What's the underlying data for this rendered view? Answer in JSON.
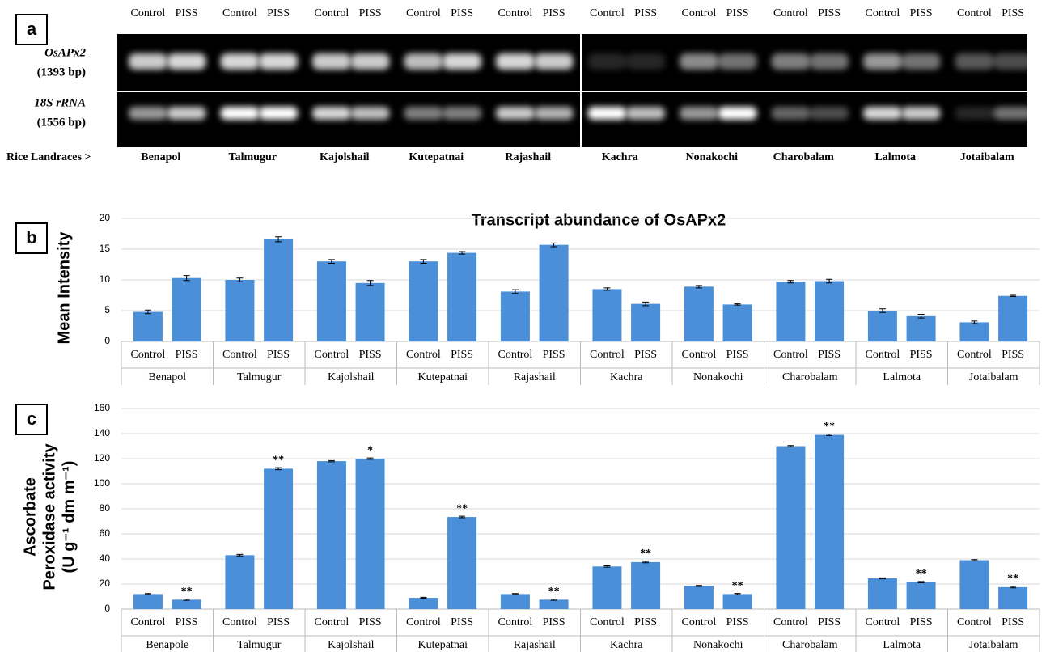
{
  "panel_a": {
    "label": "a",
    "lane_headers": [
      "Control",
      "PISS",
      "Control",
      "PISS",
      "Control",
      "PISS",
      "Control",
      "PISS",
      "Control",
      "PISS",
      "Control",
      "PISS",
      "Control",
      "PISS",
      "Control",
      "PISS",
      "Control",
      "PISS",
      "Control",
      "PISS"
    ],
    "genes": [
      {
        "name": "OsAPx2",
        "size": "(1393 bp)"
      },
      {
        "name": "18S rRNA",
        "size": "(1556 bp)"
      }
    ],
    "row_label": "Rice Landraces >",
    "landraces": [
      "Benapol",
      "Talmugur",
      "Kajolshail",
      "Kutepatnai",
      "Rajashail",
      "Kachra",
      "Nonakochi",
      "Charobalam",
      "Lalmota",
      "Jotaibalam"
    ]
  },
  "chart_data": [
    {
      "type": "bar",
      "panel_label": "b",
      "title": "Transcript abundance of OsAPx2",
      "ylabel": [
        "Mean Intensity"
      ],
      "categories": [
        "Control",
        "PISS",
        "Control",
        "PISS",
        "Control",
        "PISS",
        "Control",
        "PISS",
        "Control",
        "PISS",
        "Control",
        "PISS",
        "Control",
        "PISS",
        "Control",
        "PISS",
        "Control",
        "PISS",
        "Control",
        "PISS"
      ],
      "groups": [
        "Benapol",
        "Talmugur",
        "Kajolshail",
        "Kutepatnai",
        "Rajashail",
        "Kachra",
        "Nonakochi",
        "Charobalam",
        "Lalmota",
        "Jotaibalam"
      ],
      "values": [
        4.8,
        10.3,
        10,
        16.6,
        13,
        9.5,
        13,
        14.4,
        8.1,
        15.7,
        8.5,
        6.1,
        8.9,
        6.0,
        9.7,
        9.8,
        5.0,
        4.1,
        3.1,
        7.4
      ],
      "errors": [
        0.3,
        0.4,
        0.3,
        0.4,
        0.3,
        0.4,
        0.3,
        0.2,
        0.3,
        0.3,
        0.2,
        0.3,
        0.2,
        0.1,
        0.2,
        0.3,
        0.3,
        0.3,
        0.2,
        0.1
      ],
      "color": "#4a8fd8",
      "ylim": [
        0,
        20
      ],
      "yticks": [
        0,
        5,
        10,
        15,
        20
      ],
      "grid": true
    },
    {
      "type": "bar",
      "panel_label": "c",
      "ylabel": [
        "Ascorbate",
        "Peroxidase activity",
        "(U g⁻¹ dm m⁻¹)"
      ],
      "categories": [
        "Control",
        "PISS",
        "Control",
        "PISS",
        "Control",
        "PISS",
        "Control",
        "PISS",
        "Control",
        "PISS",
        "Control",
        "PISS",
        "Control",
        "PISS",
        "Control",
        "PISS",
        "Control",
        "PISS",
        "Control",
        "PISS"
      ],
      "groups": [
        "Benapole",
        "Talmugur",
        "Kajolshail",
        "Kutepatnai",
        "Rajashail",
        "Kachra",
        "Nonakochi",
        "Charobalam",
        "Lalmota",
        "Jotaibalam"
      ],
      "values": [
        12,
        7.5,
        43,
        112,
        118,
        120,
        9,
        73.5,
        12,
        7.5,
        34,
        37.5,
        18.5,
        12,
        130,
        139,
        24.5,
        21.5,
        39,
        17.5
      ],
      "errors": [
        0.4,
        0.5,
        0.6,
        0.8,
        0.5,
        0.6,
        0.4,
        0.6,
        0.4,
        0.5,
        0.5,
        0.6,
        0.4,
        0.5,
        0.5,
        0.6,
        0.4,
        0.5,
        0.5,
        0.6
      ],
      "significance": [
        null,
        "**",
        null,
        "**",
        null,
        "*",
        null,
        "**",
        null,
        "**",
        null,
        "**",
        null,
        "**",
        null,
        "**",
        null,
        "**",
        null,
        "**"
      ],
      "color": "#4a8fd8",
      "ylim": [
        0,
        160
      ],
      "yticks": [
        0,
        20,
        40,
        60,
        80,
        100,
        120,
        140,
        160
      ],
      "grid": true
    }
  ]
}
